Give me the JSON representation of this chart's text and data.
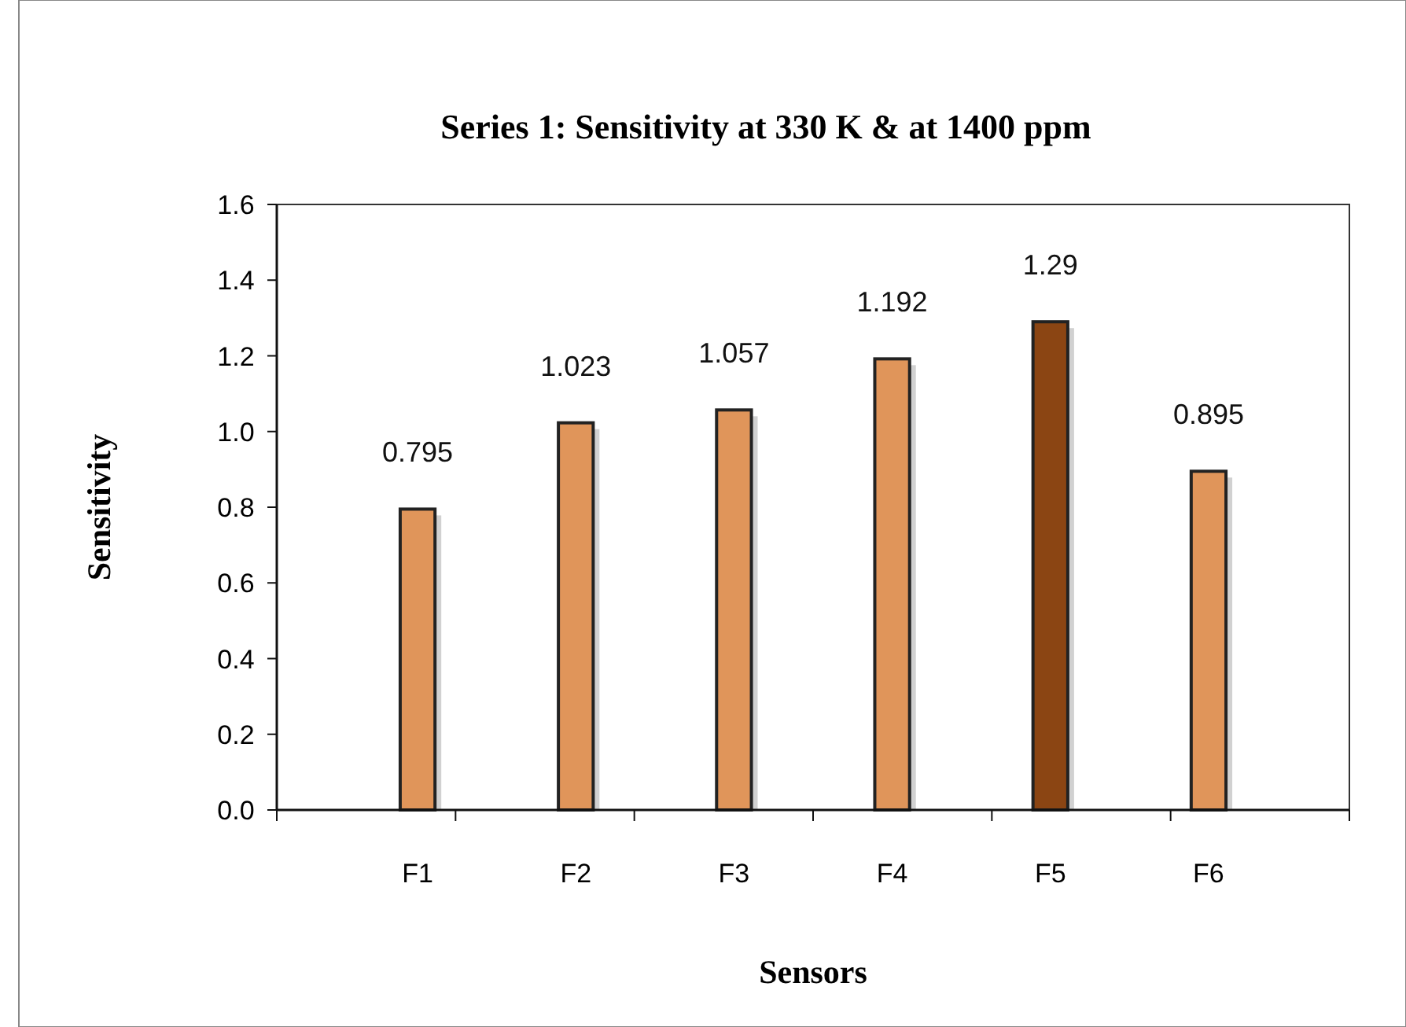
{
  "chart_data": {
    "type": "bar",
    "title": "Series 1: Sensitivity at 330 K & at 1400 ppm",
    "xlabel": "Sensors",
    "ylabel": "Sensitivity",
    "categories": [
      "F1",
      "F2",
      "F3",
      "F4",
      "F5",
      "F6"
    ],
    "values": [
      0.795,
      1.023,
      1.057,
      1.192,
      1.29,
      0.895
    ],
    "colors": [
      "#e0955a",
      "#e0955a",
      "#e0955a",
      "#e0955a",
      "#8b4513",
      "#e0955a"
    ],
    "data_labels": true,
    "ylim": [
      0,
      1.6
    ],
    "yticks": [
      {
        "value": 0,
        "label": "0.0"
      },
      {
        "value": 0.2,
        "label": "0.2"
      },
      {
        "value": 0.4,
        "label": "0.4"
      },
      {
        "value": 0.6,
        "label": "0.6"
      },
      {
        "value": 0.8,
        "label": "0.8"
      },
      {
        "value": 1,
        "label": "1.0"
      },
      {
        "value": 1.2,
        "label": "1.2"
      },
      {
        "value": 1.4,
        "label": "1.4"
      },
      {
        "value": 1.6,
        "label": "1.6"
      }
    ],
    "grid": false
  }
}
